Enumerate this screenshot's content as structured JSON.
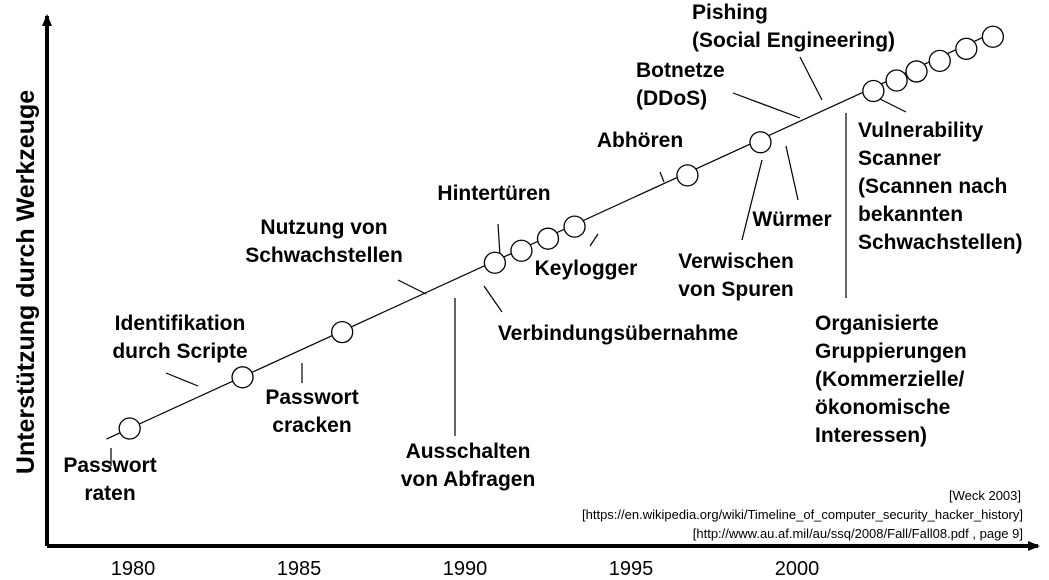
{
  "chart_data": {
    "type": "scatter",
    "ylabel": "Unterstützung durch Werkzeuge",
    "x_ticks": [
      "1980",
      "1985",
      "1990",
      "1995",
      "2000"
    ],
    "xlim": [
      1979,
      2008
    ],
    "points": [
      {
        "id": "passwort-raten",
        "x": 1979.9,
        "lines": [
          "Passwort",
          "raten"
        ]
      },
      {
        "id": "identifikation",
        "x": 1983.3,
        "lines": [
          "Identifikation",
          "durch Scripte"
        ]
      },
      {
        "id": "passwort-cracken",
        "x": 1986.3,
        "lines": [
          "Passwort",
          "cracken"
        ]
      },
      {
        "id": "nutzung-schwachstellen",
        "x": 1990.9,
        "lines": [
          "Nutzung von",
          "Schwachstellen"
        ]
      },
      {
        "id": "ausschalten",
        "x": 1991.7,
        "lines": [
          "Ausschalten",
          "von Abfragen"
        ]
      },
      {
        "id": "verbindung",
        "x": 1992.5,
        "lines": [
          "Verbindungsübernahme"
        ]
      },
      {
        "id": "hintertueren",
        "x": 1993.3,
        "lines": [
          "Hintertüren"
        ]
      },
      {
        "id": "keylogger",
        "x": 1996.7,
        "lines": [
          "Keylogger"
        ]
      },
      {
        "id": "abhoeren",
        "x": 1998.9,
        "lines": [
          "Abhören"
        ]
      },
      {
        "id": "verwischen",
        "x": 2002.3,
        "lines": [
          "Verwischen",
          "von Spuren"
        ]
      },
      {
        "id": "wuermer",
        "x": 2003.0,
        "lines": [
          "Würmer"
        ]
      },
      {
        "id": "botnetze",
        "x": 2003.6,
        "lines": [
          "Botnetze",
          "(DDoS)"
        ]
      },
      {
        "id": "pishing",
        "x": 2004.3,
        "lines": [
          "Pishing",
          "(Social Engineering)"
        ]
      },
      {
        "id": "organisierte",
        "x": 2005.1,
        "lines": [
          "Organisierte",
          "Gruppierungen",
          "(Kommerzielle/",
          "ökonomische",
          "Interessen)"
        ]
      },
      {
        "id": "vulnerability",
        "x": 2005.9,
        "lines": [
          "Vulnerability",
          "Scanner",
          "(Scannen nach",
          "bekannten",
          "Schwachstellen)"
        ]
      }
    ],
    "sources": [
      "[Weck 2003]",
      "[https://en.wikipedia.org/wiki/Timeline_of_computer_security_hacker_history]",
      "[http://www.au.af.mil/au/ssq/2008/Fall/Fall08.pdf , page 9]"
    ],
    "colors": {
      "line": "#000000",
      "circle_fill": "#ffffff",
      "text": "#000000"
    }
  }
}
